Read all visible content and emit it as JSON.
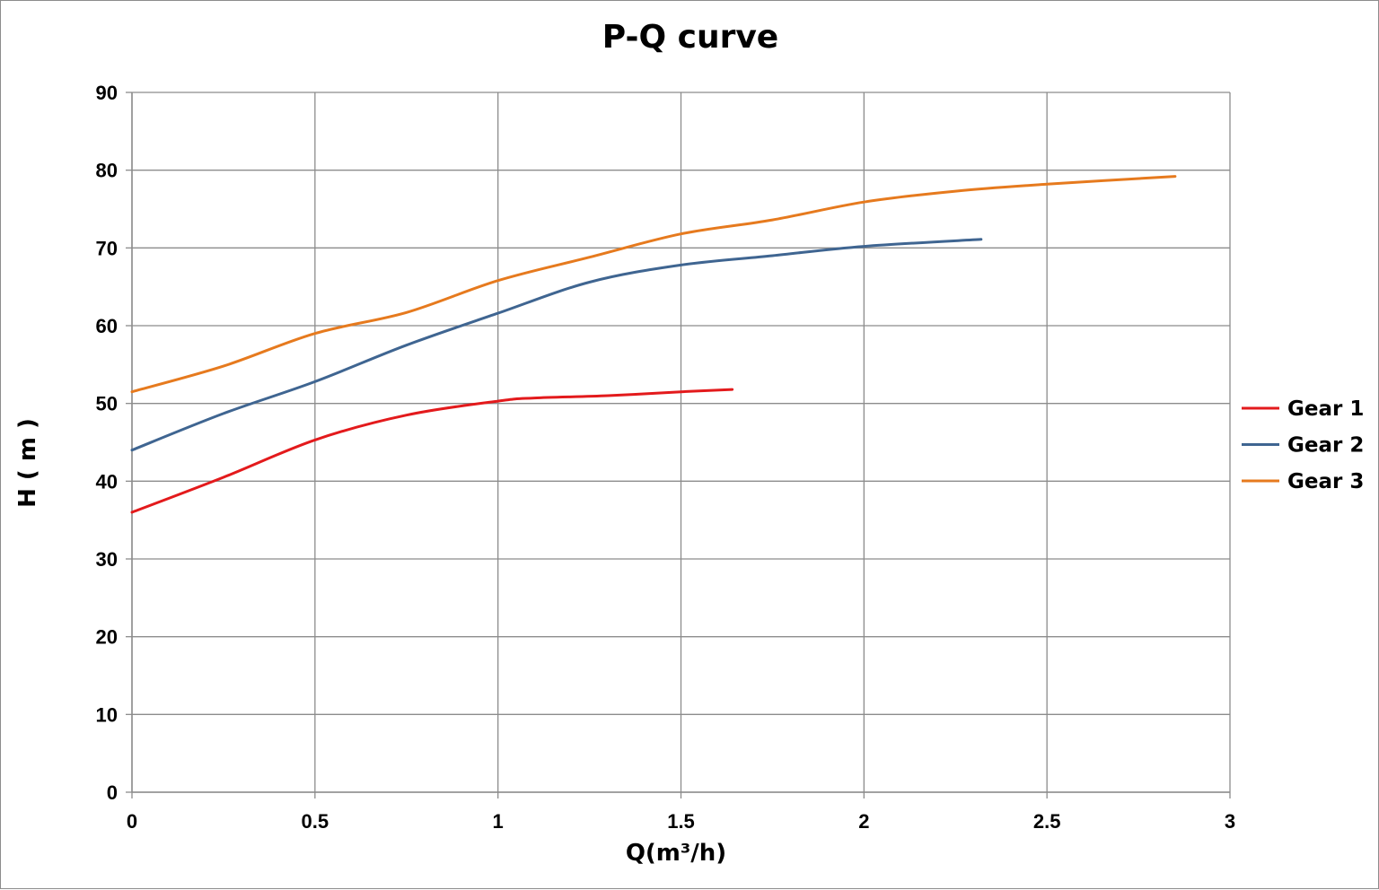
{
  "chart_data": {
    "type": "line",
    "title": "P-Q  curve",
    "xlabel": "Q(m³/h)",
    "ylabel": "H ( m )",
    "xlim": [
      0,
      3
    ],
    "ylim": [
      0,
      90
    ],
    "x_ticks": [
      0,
      0.5,
      1,
      1.5,
      2,
      2.5,
      3
    ],
    "x_tick_labels": [
      "0",
      "0.5",
      "1",
      "1.5",
      "2",
      "2.5",
      "3"
    ],
    "y_ticks": [
      0,
      10,
      20,
      30,
      40,
      50,
      60,
      70,
      80,
      90
    ],
    "y_tick_labels": [
      "0",
      "10",
      "20",
      "30",
      "40",
      "50",
      "60",
      "70",
      "80",
      "90"
    ],
    "grid": true,
    "legend_position": "right",
    "series": [
      {
        "name": "Gear 1",
        "color": "#e31a1c",
        "x": [
          0,
          0.25,
          0.5,
          0.75,
          1.0,
          1.1,
          1.3,
          1.5,
          1.64
        ],
        "y": [
          36,
          40.5,
          45.3,
          48.5,
          50.3,
          50.7,
          51.0,
          51.5,
          51.8
        ]
      },
      {
        "name": "Gear 2",
        "color": "#3f6591",
        "x": [
          0,
          0.25,
          0.5,
          0.75,
          1.0,
          1.25,
          1.5,
          1.75,
          2.0,
          2.32
        ],
        "y": [
          44,
          48.7,
          52.8,
          57.5,
          61.6,
          65.6,
          67.8,
          69.0,
          70.2,
          71.1
        ]
      },
      {
        "name": "Gear 3",
        "color": "#e67a1e",
        "x": [
          0,
          0.25,
          0.5,
          0.75,
          1.0,
          1.25,
          1.5,
          1.75,
          2.0,
          2.25,
          2.5,
          2.85
        ],
        "y": [
          51.5,
          54.8,
          59.0,
          61.7,
          65.8,
          68.8,
          71.8,
          73.6,
          75.9,
          77.3,
          78.2,
          79.2
        ]
      }
    ]
  }
}
